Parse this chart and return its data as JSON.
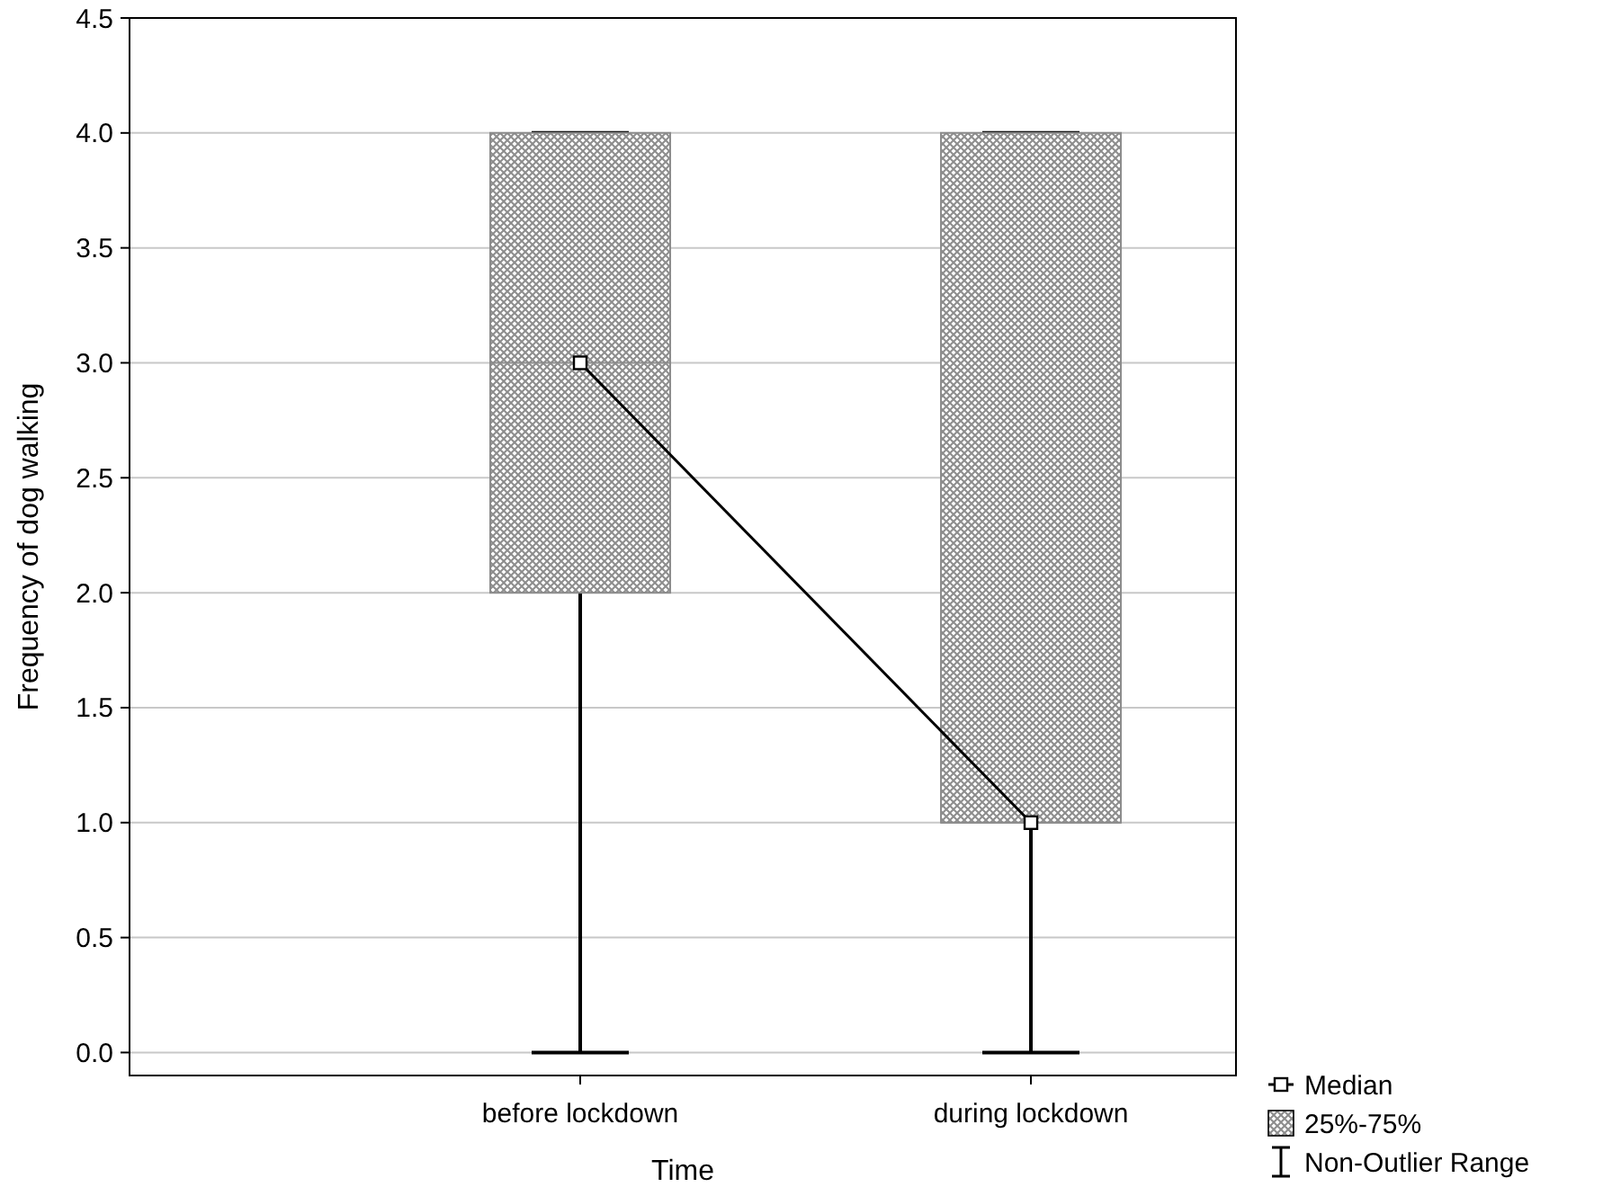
{
  "chart_data": {
    "type": "box",
    "categories": [
      "before lockdown",
      "during lockdown"
    ],
    "xlabel": "Time",
    "ylabel": "Frequency of dog walking",
    "ylim": [
      -0.1,
      4.5
    ],
    "yticks": [
      {
        "value": 0,
        "label": "0.0"
      },
      0.5,
      {
        "value": 1,
        "label": "1.0"
      },
      1.5,
      {
        "value": 2,
        "label": "2.0"
      },
      2.5,
      {
        "value": 3,
        "label": "3.0"
      },
      3.5,
      {
        "value": 4,
        "label": "4.0"
      },
      4.5
    ],
    "grid": "y",
    "legend": "bottom right",
    "marker": "square",
    "series": [
      {
        "name": "Median",
        "type": "line",
        "color": "#000000",
        "values": [
          3,
          1
        ]
      },
      {
        "name": "25%-75%",
        "color": "#8c8c8c",
        "boxes": [
          {
            "low": 0,
            "q1": 2,
            "median": 3,
            "q3": 4,
            "high": 4
          },
          {
            "low": 0,
            "q1": 1,
            "median": 1,
            "q3": 4,
            "high": 4
          }
        ]
      }
    ],
    "annotations": [
      "Non-Outlier Range"
    ]
  }
}
